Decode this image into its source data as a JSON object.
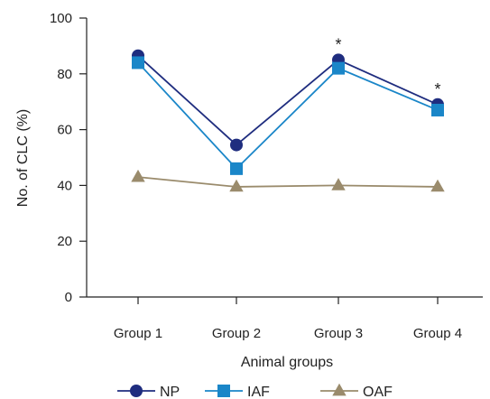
{
  "chart_data": {
    "type": "line",
    "title": "",
    "xlabel": "Animal groups",
    "ylabel": "No. of CLC (%)",
    "categories": [
      "Group 1",
      "Group 2",
      "Group 3",
      "Group 4"
    ],
    "ylim": [
      0,
      100
    ],
    "yticks": [
      "0",
      "20",
      "40",
      "60",
      "80",
      "100"
    ],
    "grid": false,
    "legend_position": "bottom",
    "series": [
      {
        "name": "NP",
        "values": [
          86.5,
          54.5,
          85,
          69
        ],
        "color": "#1f2d7f",
        "marker": "circle"
      },
      {
        "name": "IAF",
        "values": [
          84,
          46,
          82,
          67
        ],
        "color": "#1a86c8",
        "marker": "square"
      },
      {
        "name": "OAF",
        "values": [
          43,
          39.5,
          40,
          39.5
        ],
        "color": "#9a8b6c",
        "marker": "triangle"
      }
    ],
    "annotations": [
      {
        "category": "Group 3",
        "text": "*"
      },
      {
        "category": "Group 4",
        "text": "*"
      }
    ]
  }
}
